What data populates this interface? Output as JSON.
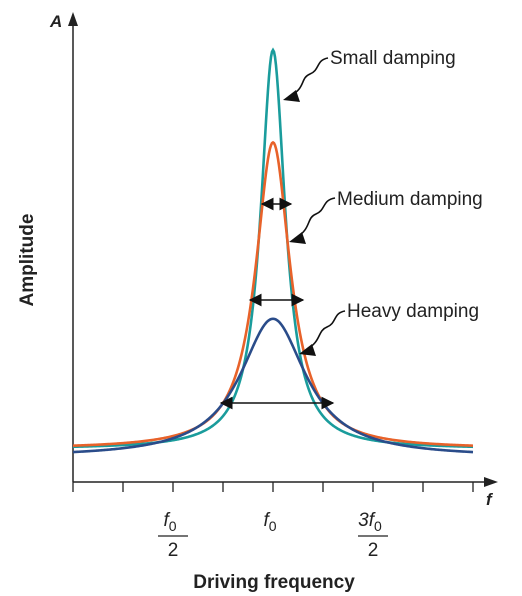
{
  "chart_data": {
    "type": "line",
    "xlabel": "Driving frequency",
    "ylabel": "Amplitude",
    "x_axis_symbol": "f",
    "y_axis_symbol": "A",
    "grid": false,
    "legend": "none",
    "x_ticks": [
      {
        "value": 0.5,
        "numerator": "f",
        "subscript": "0",
        "denominator": "2"
      },
      {
        "value": 1.0,
        "numerator": "f",
        "subscript": "0",
        "denominator": ""
      },
      {
        "value": 1.5,
        "numerator": "3f",
        "subscript": "0",
        "denominator": "2"
      }
    ],
    "xlim": [
      0,
      2.07
    ],
    "ylim": [
      0,
      1.0
    ],
    "series": [
      {
        "name": "Small damping",
        "color": "#1a9c9c",
        "peak": 1.0,
        "width": 0.075,
        "baseline": 0.05
      },
      {
        "name": "Medium damping",
        "color": "#e8622a",
        "peak": 0.78,
        "width": 0.105,
        "baseline": 0.05
      },
      {
        "name": "Heavy damping",
        "color": "#2a4c8a",
        "peak": 0.36,
        "width": 0.2,
        "baseline": 0.03
      }
    ],
    "annotations": [
      {
        "text": "Small damping",
        "series": 0
      },
      {
        "text": "Medium damping",
        "series": 1
      },
      {
        "text": "Heavy damping",
        "series": 2
      }
    ]
  }
}
